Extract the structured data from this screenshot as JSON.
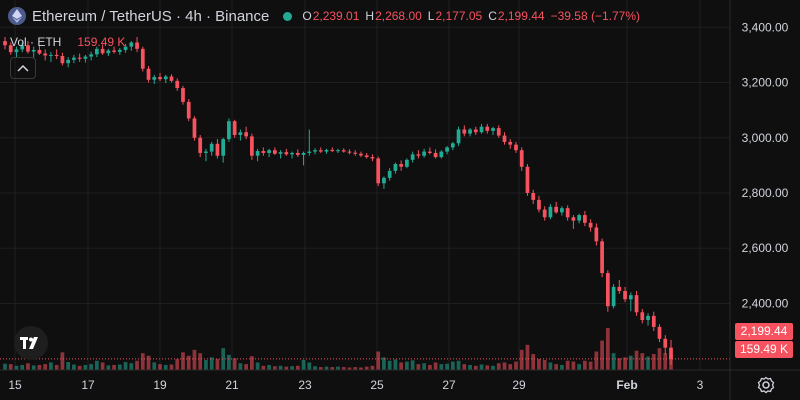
{
  "header": {
    "title": "Ethereum / TetherUS · 4h · Binance",
    "ohlc": [
      {
        "k": "O",
        "v": "2,239.01"
      },
      {
        "k": "H",
        "v": "2,268.00"
      },
      {
        "k": "L",
        "v": "2,177.05"
      },
      {
        "k": "C",
        "v": "2,199.44"
      }
    ],
    "change": "−39.58 (−1.77%)"
  },
  "volume_legend": {
    "label": "Vol · ETH",
    "value": "159.49 K"
  },
  "price_tags": {
    "price": "2,199.44",
    "volume": "159.49 K"
  },
  "colors": {
    "up": "#22ab94",
    "down": "#f7525f",
    "grid": "#1f1f1f",
    "text": "#d1d4dc"
  },
  "chart_data": {
    "type": "candlestick",
    "title": "Ethereum / TetherUS · 4h · Binance",
    "x_ticks": [
      "15",
      "17",
      "19",
      "21",
      "23",
      "25",
      "27",
      "29",
      "Feb",
      "3"
    ],
    "y_ticks": [
      2400,
      2600,
      2800,
      3000,
      3200,
      3400
    ],
    "y_tick_labels": [
      "2,400.00",
      "2,600.00",
      "2,800.00",
      "3,000.00",
      "3,200.00",
      "3,400.00"
    ],
    "ylim": [
      2130,
      3450
    ],
    "last_price": 2199.44,
    "candles": [
      [
        3350,
        3365,
        3320,
        3335
      ],
      [
        3335,
        3345,
        3300,
        3310
      ],
      [
        3310,
        3330,
        3290,
        3320
      ],
      [
        3320,
        3345,
        3310,
        3335
      ],
      [
        3335,
        3350,
        3305,
        3312
      ],
      [
        3312,
        3330,
        3290,
        3318
      ],
      [
        3318,
        3335,
        3300,
        3305
      ],
      [
        3305,
        3320,
        3280,
        3298
      ],
      [
        3298,
        3310,
        3275,
        3300
      ],
      [
        3300,
        3320,
        3285,
        3296
      ],
      [
        3296,
        3308,
        3262,
        3270
      ],
      [
        3270,
        3292,
        3255,
        3282
      ],
      [
        3282,
        3300,
        3270,
        3290
      ],
      [
        3290,
        3305,
        3275,
        3286
      ],
      [
        3286,
        3300,
        3272,
        3294
      ],
      [
        3294,
        3312,
        3280,
        3302
      ],
      [
        3302,
        3330,
        3292,
        3322
      ],
      [
        3322,
        3338,
        3300,
        3306
      ],
      [
        3306,
        3322,
        3296,
        3316
      ],
      [
        3316,
        3330,
        3305,
        3311
      ],
      [
        3311,
        3325,
        3300,
        3318
      ],
      [
        3318,
        3340,
        3308,
        3330
      ],
      [
        3330,
        3350,
        3315,
        3345
      ],
      [
        3345,
        3365,
        3310,
        3322
      ],
      [
        3322,
        3330,
        3240,
        3250
      ],
      [
        3250,
        3260,
        3200,
        3210
      ],
      [
        3210,
        3228,
        3195,
        3220
      ],
      [
        3220,
        3235,
        3205,
        3212
      ],
      [
        3212,
        3228,
        3198,
        3222
      ],
      [
        3222,
        3230,
        3200,
        3206
      ],
      [
        3206,
        3215,
        3170,
        3180
      ],
      [
        3180,
        3188,
        3120,
        3130
      ],
      [
        3130,
        3140,
        3060,
        3070
      ],
      [
        3070,
        3078,
        2990,
        3000
      ],
      [
        3000,
        3010,
        2930,
        2945
      ],
      [
        2945,
        2960,
        2915,
        2950
      ],
      [
        2950,
        2985,
        2935,
        2978
      ],
      [
        2978,
        2995,
        2925,
        2935
      ],
      [
        2935,
        3000,
        2910,
        2995
      ],
      [
        2995,
        3070,
        2985,
        3060
      ],
      [
        3060,
        3065,
        3000,
        3010
      ],
      [
        3010,
        3030,
        2990,
        3020
      ],
      [
        3020,
        3040,
        2995,
        3005
      ],
      [
        3005,
        3015,
        2920,
        2935
      ],
      [
        2935,
        2960,
        2915,
        2952
      ],
      [
        2952,
        2965,
        2935,
        2945
      ],
      [
        2945,
        2960,
        2930,
        2955
      ],
      [
        2955,
        2965,
        2938,
        2942
      ],
      [
        2942,
        2955,
        2925,
        2948
      ],
      [
        2948,
        2960,
        2935,
        2940
      ],
      [
        2940,
        2950,
        2925,
        2945
      ],
      [
        2945,
        2958,
        2930,
        2938
      ],
      [
        2938,
        2950,
        2900,
        2945
      ],
      [
        2945,
        3030,
        2935,
        2950
      ],
      [
        2950,
        2962,
        2940,
        2955
      ],
      [
        2955,
        2965,
        2945,
        2950
      ],
      [
        2950,
        2960,
        2942,
        2956
      ],
      [
        2956,
        2965,
        2948,
        2952
      ],
      [
        2952,
        2960,
        2945,
        2955
      ],
      [
        2955,
        2962,
        2946,
        2950
      ],
      [
        2950,
        2958,
        2940,
        2946
      ],
      [
        2946,
        2955,
        2935,
        2942
      ],
      [
        2942,
        2950,
        2930,
        2936
      ],
      [
        2936,
        2945,
        2925,
        2930
      ],
      [
        2930,
        2940,
        2915,
        2925
      ],
      [
        2925,
        2932,
        2825,
        2835
      ],
      [
        2835,
        2860,
        2815,
        2855
      ],
      [
        2855,
        2890,
        2845,
        2880
      ],
      [
        2880,
        2910,
        2870,
        2905
      ],
      [
        2905,
        2918,
        2880,
        2895
      ],
      [
        2895,
        2925,
        2890,
        2920
      ],
      [
        2920,
        2950,
        2910,
        2940
      ],
      [
        2940,
        2955,
        2925,
        2935
      ],
      [
        2935,
        2960,
        2928,
        2950
      ],
      [
        2950,
        2965,
        2940,
        2945
      ],
      [
        2945,
        2958,
        2925,
        2930
      ],
      [
        2930,
        2955,
        2925,
        2950
      ],
      [
        2950,
        2970,
        2940,
        2965
      ],
      [
        2965,
        2985,
        2955,
        2980
      ],
      [
        2980,
        3040,
        2970,
        3030
      ],
      [
        3030,
        3045,
        3005,
        3015
      ],
      [
        3015,
        3035,
        3005,
        3030
      ],
      [
        3030,
        3040,
        3010,
        3020
      ],
      [
        3020,
        3050,
        3015,
        3040
      ],
      [
        3040,
        3050,
        3015,
        3025
      ],
      [
        3025,
        3040,
        3010,
        3035
      ],
      [
        3035,
        3045,
        3000,
        3008
      ],
      [
        3008,
        3020,
        2975,
        2985
      ],
      [
        2985,
        2995,
        2960,
        2975
      ],
      [
        2975,
        2985,
        2945,
        2955
      ],
      [
        2955,
        2965,
        2880,
        2895
      ],
      [
        2895,
        2905,
        2790,
        2800
      ],
      [
        2800,
        2812,
        2760,
        2775
      ],
      [
        2775,
        2790,
        2730,
        2740
      ],
      [
        2740,
        2752,
        2700,
        2712
      ],
      [
        2712,
        2760,
        2705,
        2750
      ],
      [
        2750,
        2768,
        2725,
        2730
      ],
      [
        2730,
        2752,
        2718,
        2745
      ],
      [
        2745,
        2755,
        2700,
        2712
      ],
      [
        2712,
        2720,
        2670,
        2700
      ],
      [
        2700,
        2725,
        2690,
        2720
      ],
      [
        2720,
        2735,
        2680,
        2692
      ],
      [
        2692,
        2705,
        2660,
        2675
      ],
      [
        2675,
        2690,
        2610,
        2625
      ],
      [
        2625,
        2635,
        2495,
        2510
      ],
      [
        2510,
        2520,
        2370,
        2390
      ],
      [
        2390,
        2470,
        2382,
        2460
      ],
      [
        2460,
        2485,
        2435,
        2445
      ],
      [
        2445,
        2460,
        2405,
        2415
      ],
      [
        2415,
        2440,
        2372,
        2430
      ],
      [
        2430,
        2445,
        2355,
        2368
      ],
      [
        2368,
        2380,
        2328,
        2340
      ],
      [
        2340,
        2365,
        2320,
        2355
      ],
      [
        2355,
        2370,
        2300,
        2315
      ],
      [
        2315,
        2325,
        2260,
        2272
      ],
      [
        2272,
        2285,
        2215,
        2240
      ],
      [
        2240,
        2268,
        2177,
        2199
      ]
    ],
    "volume": [
      {
        "v": 15,
        "up": true
      },
      {
        "v": 14,
        "up": false
      },
      {
        "v": 10,
        "up": true
      },
      {
        "v": 12,
        "up": true
      },
      {
        "v": 16,
        "up": false
      },
      {
        "v": 11,
        "up": true
      },
      {
        "v": 12,
        "up": false
      },
      {
        "v": 14,
        "up": false
      },
      {
        "v": 18,
        "up": true
      },
      {
        "v": 12,
        "up": false
      },
      {
        "v": 42,
        "up": false
      },
      {
        "v": 19,
        "up": true
      },
      {
        "v": 13,
        "up": true
      },
      {
        "v": 10,
        "up": false
      },
      {
        "v": 12,
        "up": true
      },
      {
        "v": 14,
        "up": true
      },
      {
        "v": 22,
        "up": true
      },
      {
        "v": 18,
        "up": false
      },
      {
        "v": 11,
        "up": true
      },
      {
        "v": 12,
        "up": false
      },
      {
        "v": 13,
        "up": true
      },
      {
        "v": 19,
        "up": true
      },
      {
        "v": 16,
        "up": true
      },
      {
        "v": 22,
        "up": false
      },
      {
        "v": 40,
        "up": false
      },
      {
        "v": 34,
        "up": false
      },
      {
        "v": 18,
        "up": true
      },
      {
        "v": 14,
        "up": false
      },
      {
        "v": 12,
        "up": true
      },
      {
        "v": 13,
        "up": false
      },
      {
        "v": 26,
        "up": false
      },
      {
        "v": 42,
        "up": false
      },
      {
        "v": 34,
        "up": false
      },
      {
        "v": 48,
        "up": false
      },
      {
        "v": 40,
        "up": false
      },
      {
        "v": 24,
        "up": true
      },
      {
        "v": 30,
        "up": true
      },
      {
        "v": 26,
        "up": false
      },
      {
        "v": 52,
        "up": true
      },
      {
        "v": 36,
        "up": true
      },
      {
        "v": 28,
        "up": false
      },
      {
        "v": 16,
        "up": true
      },
      {
        "v": 14,
        "up": false
      },
      {
        "v": 33,
        "up": false
      },
      {
        "v": 18,
        "up": true
      },
      {
        "v": 10,
        "up": false
      },
      {
        "v": 12,
        "up": true
      },
      {
        "v": 9,
        "up": false
      },
      {
        "v": 10,
        "up": true
      },
      {
        "v": 8,
        "up": false
      },
      {
        "v": 9,
        "up": true
      },
      {
        "v": 10,
        "up": false
      },
      {
        "v": 24,
        "up": true
      },
      {
        "v": 18,
        "up": true
      },
      {
        "v": 9,
        "up": true
      },
      {
        "v": 7,
        "up": false
      },
      {
        "v": 8,
        "up": true
      },
      {
        "v": 7,
        "up": false
      },
      {
        "v": 8,
        "up": true
      },
      {
        "v": 7,
        "up": false
      },
      {
        "v": 6,
        "up": false
      },
      {
        "v": 7,
        "up": false
      },
      {
        "v": 6,
        "up": false
      },
      {
        "v": 8,
        "up": false
      },
      {
        "v": 10,
        "up": false
      },
      {
        "v": 44,
        "up": false
      },
      {
        "v": 30,
        "up": true
      },
      {
        "v": 22,
        "up": true
      },
      {
        "v": 25,
        "up": true
      },
      {
        "v": 18,
        "up": false
      },
      {
        "v": 20,
        "up": true
      },
      {
        "v": 23,
        "up": true
      },
      {
        "v": 14,
        "up": false
      },
      {
        "v": 16,
        "up": true
      },
      {
        "v": 12,
        "up": false
      },
      {
        "v": 18,
        "up": false
      },
      {
        "v": 14,
        "up": true
      },
      {
        "v": 15,
        "up": true
      },
      {
        "v": 20,
        "up": true
      },
      {
        "v": 22,
        "up": true
      },
      {
        "v": 14,
        "up": false
      },
      {
        "v": 12,
        "up": true
      },
      {
        "v": 10,
        "up": false
      },
      {
        "v": 13,
        "up": true
      },
      {
        "v": 11,
        "up": false
      },
      {
        "v": 10,
        "up": true
      },
      {
        "v": 16,
        "up": false
      },
      {
        "v": 18,
        "up": false
      },
      {
        "v": 14,
        "up": false
      },
      {
        "v": 20,
        "up": false
      },
      {
        "v": 48,
        "up": false
      },
      {
        "v": 60,
        "up": false
      },
      {
        "v": 38,
        "up": false
      },
      {
        "v": 26,
        "up": false
      },
      {
        "v": 24,
        "up": false
      },
      {
        "v": 18,
        "up": true
      },
      {
        "v": 14,
        "up": false
      },
      {
        "v": 12,
        "up": true
      },
      {
        "v": 22,
        "up": false
      },
      {
        "v": 20,
        "up": false
      },
      {
        "v": 14,
        "up": true
      },
      {
        "v": 22,
        "up": false
      },
      {
        "v": 20,
        "up": false
      },
      {
        "v": 44,
        "up": false
      },
      {
        "v": 70,
        "up": false
      },
      {
        "v": 100,
        "up": false
      },
      {
        "v": 40,
        "up": true
      },
      {
        "v": 28,
        "up": false
      },
      {
        "v": 30,
        "up": false
      },
      {
        "v": 34,
        "up": true
      },
      {
        "v": 46,
        "up": false
      },
      {
        "v": 40,
        "up": false
      },
      {
        "v": 32,
        "up": true
      },
      {
        "v": 38,
        "up": false
      },
      {
        "v": 52,
        "up": false
      },
      {
        "v": 40,
        "up": false
      },
      {
        "v": 38,
        "up": false
      }
    ]
  }
}
